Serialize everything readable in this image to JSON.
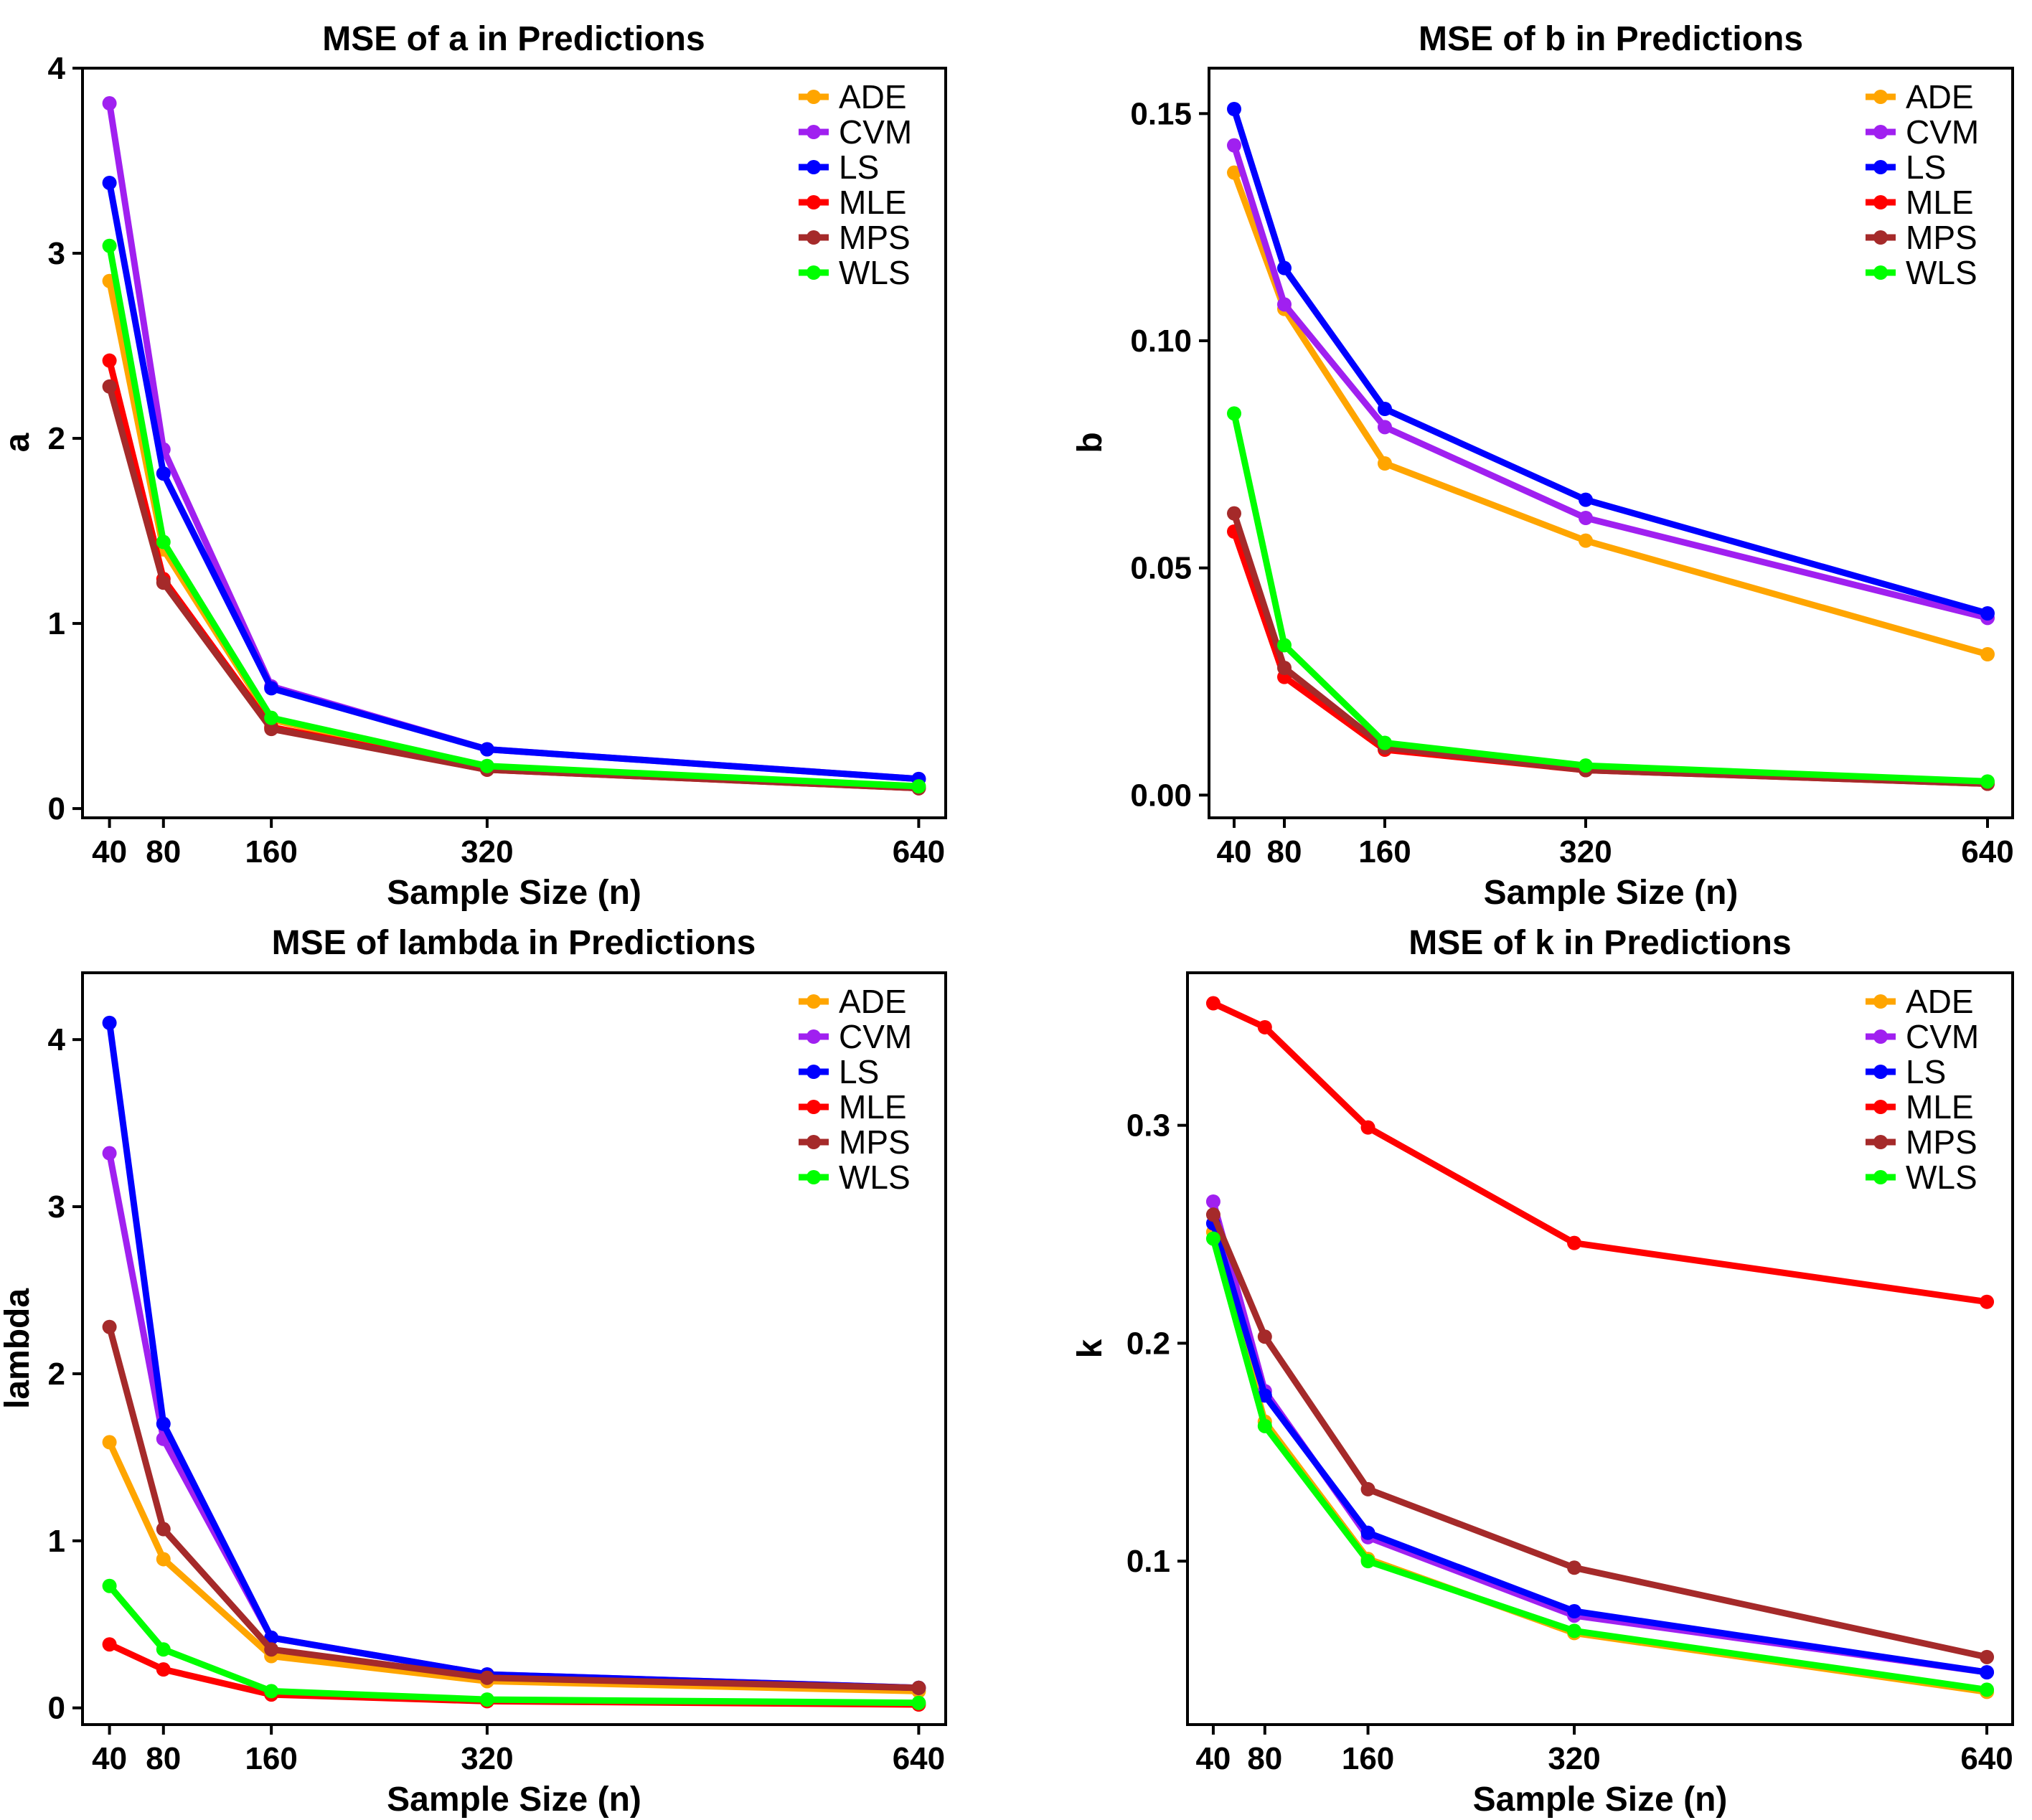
{
  "chart_data": [
    {
      "type": "line",
      "title": "MSE of a in Predictions",
      "xlabel": "Sample Size (n)",
      "ylabel": "a",
      "x": [
        40,
        80,
        160,
        320,
        640
      ],
      "xticks": [
        "40",
        "80",
        "160",
        "320",
        "640"
      ],
      "yticks": [
        "0",
        "1",
        "2",
        "3",
        "4"
      ],
      "xlim": [
        20,
        660
      ],
      "ylim": [
        -0.05,
        4.0
      ],
      "ytick_values": [
        0,
        1,
        2,
        3,
        4
      ],
      "legend_position": "top-right",
      "grid": false,
      "series": [
        {
          "name": "ADE",
          "color": "#FFA500",
          "values": [
            2.85,
            1.4,
            0.48,
            0.22,
            0.12
          ]
        },
        {
          "name": "CVM",
          "color": "#A020F0",
          "values": [
            3.81,
            1.94,
            0.66,
            0.32,
            0.16
          ]
        },
        {
          "name": "LS",
          "color": "#0000FF",
          "values": [
            3.38,
            1.81,
            0.65,
            0.32,
            0.16
          ]
        },
        {
          "name": "MLE",
          "color": "#FF0000",
          "values": [
            2.42,
            1.24,
            0.44,
            0.21,
            0.11
          ]
        },
        {
          "name": "MPS",
          "color": "#A52A2A",
          "values": [
            2.28,
            1.22,
            0.43,
            0.21,
            0.11
          ]
        },
        {
          "name": "WLS",
          "color": "#00FF00",
          "values": [
            3.04,
            1.44,
            0.49,
            0.23,
            0.12
          ]
        }
      ]
    },
    {
      "type": "line",
      "title": "MSE of b in Predictions",
      "xlabel": "Sample Size (n)",
      "ylabel": "b",
      "x": [
        40,
        80,
        160,
        320,
        640
      ],
      "xticks": [
        "40",
        "80",
        "160",
        "320",
        "640"
      ],
      "yticks": [
        "0.00",
        "0.05",
        "0.10",
        "0.15"
      ],
      "xlim": [
        20,
        660
      ],
      "ylim": [
        -0.005,
        0.16
      ],
      "ytick_values": [
        0,
        0.05,
        0.1,
        0.15
      ],
      "legend_position": "top-right",
      "grid": false,
      "series": [
        {
          "name": "ADE",
          "color": "#FFA500",
          "values": [
            0.137,
            0.107,
            0.073,
            0.056,
            0.031
          ]
        },
        {
          "name": "CVM",
          "color": "#A020F0",
          "values": [
            0.143,
            0.108,
            0.081,
            0.061,
            0.039
          ]
        },
        {
          "name": "LS",
          "color": "#0000FF",
          "values": [
            0.151,
            0.116,
            0.085,
            0.065,
            0.04
          ]
        },
        {
          "name": "MLE",
          "color": "#FF0000",
          "values": [
            0.058,
            0.026,
            0.01,
            0.0055,
            0.0025
          ]
        },
        {
          "name": "MPS",
          "color": "#A52A2A",
          "values": [
            0.062,
            0.028,
            0.0105,
            0.0055,
            0.0025
          ]
        },
        {
          "name": "WLS",
          "color": "#00FF00",
          "values": [
            0.084,
            0.033,
            0.0115,
            0.0065,
            0.003
          ]
        }
      ]
    },
    {
      "type": "line",
      "title": "MSE of lambda in Predictions",
      "xlabel": "Sample Size (n)",
      "ylabel": "lambda",
      "x": [
        40,
        80,
        160,
        320,
        640
      ],
      "xticks": [
        "40",
        "80",
        "160",
        "320",
        "640"
      ],
      "yticks": [
        "0",
        "1",
        "2",
        "3",
        "4"
      ],
      "xlim": [
        20,
        660
      ],
      "ylim": [
        -0.1,
        4.4
      ],
      "ytick_values": [
        0,
        1,
        2,
        3,
        4
      ],
      "legend_position": "top-right",
      "grid": false,
      "series": [
        {
          "name": "ADE",
          "color": "#FFA500",
          "values": [
            1.59,
            0.89,
            0.31,
            0.16,
            0.1
          ]
        },
        {
          "name": "CVM",
          "color": "#A020F0",
          "values": [
            3.32,
            1.61,
            0.42,
            0.2,
            0.12
          ]
        },
        {
          "name": "LS",
          "color": "#0000FF",
          "values": [
            4.1,
            1.7,
            0.42,
            0.2,
            0.12
          ]
        },
        {
          "name": "MLE",
          "color": "#FF0000",
          "values": [
            0.38,
            0.23,
            0.08,
            0.04,
            0.02
          ]
        },
        {
          "name": "MPS",
          "color": "#A52A2A",
          "values": [
            2.28,
            1.07,
            0.35,
            0.18,
            0.12
          ]
        },
        {
          "name": "WLS",
          "color": "#00FF00",
          "values": [
            0.73,
            0.35,
            0.1,
            0.05,
            0.03
          ]
        }
      ]
    },
    {
      "type": "line",
      "title": "MSE of k in Predictions",
      "xlabel": "Sample Size (n)",
      "ylabel": "k",
      "x": [
        40,
        80,
        160,
        320,
        640
      ],
      "xticks": [
        "40",
        "80",
        "160",
        "320",
        "640"
      ],
      "yticks": [
        "0.1",
        "0.2",
        "0.3"
      ],
      "xlim": [
        20,
        660
      ],
      "ylim": [
        0.025,
        0.37
      ],
      "ytick_values": [
        0.1,
        0.2,
        0.3
      ],
      "legend_position": "top-right",
      "grid": false,
      "series": [
        {
          "name": "ADE",
          "color": "#FFA500",
          "values": [
            0.251,
            0.164,
            0.101,
            0.067,
            0.04
          ]
        },
        {
          "name": "CVM",
          "color": "#A020F0",
          "values": [
            0.265,
            0.178,
            0.111,
            0.075,
            0.049
          ]
        },
        {
          "name": "LS",
          "color": "#0000FF",
          "values": [
            0.255,
            0.176,
            0.113,
            0.077,
            0.049
          ]
        },
        {
          "name": "MLE",
          "color": "#FF0000",
          "values": [
            0.356,
            0.345,
            0.299,
            0.246,
            0.219
          ]
        },
        {
          "name": "MPS",
          "color": "#A52A2A",
          "values": [
            0.259,
            0.203,
            0.133,
            0.097,
            0.056
          ]
        },
        {
          "name": "WLS",
          "color": "#00FF00",
          "values": [
            0.248,
            0.162,
            0.1,
            0.068,
            0.041
          ]
        }
      ]
    }
  ]
}
